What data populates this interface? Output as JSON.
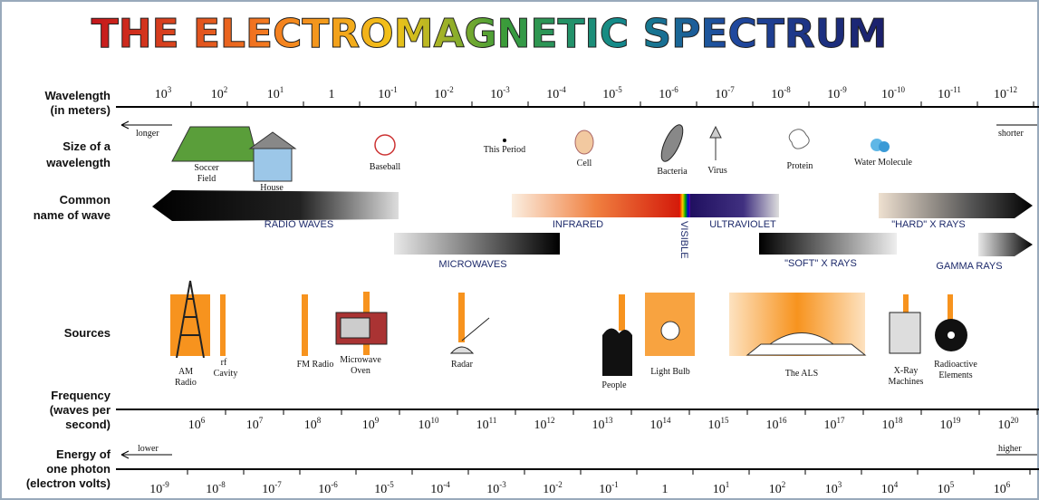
{
  "title": "THE ELECTROMAGNETIC SPECTRUM",
  "row_labels": {
    "wavelength": [
      "Wavelength",
      "(in meters)"
    ],
    "size": [
      "Size of a",
      "wavelength"
    ],
    "name": [
      "Common",
      "name of wave"
    ],
    "sources": [
      "Sources"
    ],
    "frequency": [
      "Frequency",
      "(waves per",
      "second)"
    ],
    "energy": [
      "Energy of",
      "one photon",
      "(electron volts)"
    ]
  },
  "wavelength": {
    "left": "longer",
    "right": "shorter",
    "ticks": [
      {
        "base": "10",
        "exp": "3"
      },
      {
        "base": "10",
        "exp": "2"
      },
      {
        "base": "10",
        "exp": "1"
      },
      {
        "base": "1"
      },
      {
        "base": "10",
        "exp": "-1"
      },
      {
        "base": "10",
        "exp": "-2"
      },
      {
        "base": "10",
        "exp": "-3"
      },
      {
        "base": "10",
        "exp": "-4"
      },
      {
        "base": "10",
        "exp": "-5"
      },
      {
        "base": "10",
        "exp": "-6"
      },
      {
        "base": "10",
        "exp": "-7"
      },
      {
        "base": "10",
        "exp": "-8"
      },
      {
        "base": "10",
        "exp": "-9"
      },
      {
        "base": "10",
        "exp": "-10"
      },
      {
        "base": "10",
        "exp": "-11"
      },
      {
        "base": "10",
        "exp": "-12"
      }
    ]
  },
  "sizes": [
    [
      "Soccer",
      "Field"
    ],
    [
      "House"
    ],
    [
      "Baseball"
    ],
    [
      "This Period"
    ],
    [
      "Cell"
    ],
    [
      "Bacteria"
    ],
    [
      "Virus"
    ],
    [
      "Protein"
    ],
    [
      "Water Molecule"
    ]
  ],
  "waves": [
    "RADIO WAVES",
    "INFRARED",
    "VISIBLE",
    "ULTRAVIOLET",
    "\"HARD\" X RAYS",
    "MICROWAVES",
    "\"SOFT\" X RAYS",
    "GAMMA RAYS"
  ],
  "sources": [
    [
      "AM",
      "Radio"
    ],
    [
      "rf",
      "Cavity"
    ],
    [
      "FM Radio"
    ],
    [
      "Microwave",
      "Oven"
    ],
    [
      "Radar"
    ],
    [
      "People"
    ],
    [
      "Light Bulb"
    ],
    [
      "The ALS"
    ],
    [
      "X-Ray",
      "Machines"
    ],
    [
      "Radioactive",
      "Elements"
    ]
  ],
  "frequency": {
    "ticks": [
      {
        "base": "10",
        "exp": "6"
      },
      {
        "base": "10",
        "exp": "7"
      },
      {
        "base": "10",
        "exp": "8"
      },
      {
        "base": "10",
        "exp": "9"
      },
      {
        "base": "10",
        "exp": "10"
      },
      {
        "base": "10",
        "exp": "11"
      },
      {
        "base": "10",
        "exp": "12"
      },
      {
        "base": "10",
        "exp": "13"
      },
      {
        "base": "10",
        "exp": "14"
      },
      {
        "base": "10",
        "exp": "15"
      },
      {
        "base": "10",
        "exp": "16"
      },
      {
        "base": "10",
        "exp": "17"
      },
      {
        "base": "10",
        "exp": "18"
      },
      {
        "base": "10",
        "exp": "19"
      },
      {
        "base": "10",
        "exp": "20"
      }
    ]
  },
  "energy": {
    "left": "lower",
    "right": "higher",
    "ticks": [
      {
        "base": "10",
        "exp": "-9"
      },
      {
        "base": "10",
        "exp": "-8"
      },
      {
        "base": "10",
        "exp": "-7"
      },
      {
        "base": "10",
        "exp": "-6"
      },
      {
        "base": "10",
        "exp": "-5"
      },
      {
        "base": "10",
        "exp": "-4"
      },
      {
        "base": "10",
        "exp": "-3"
      },
      {
        "base": "10",
        "exp": "-2"
      },
      {
        "base": "10",
        "exp": "-1"
      },
      {
        "base": "1"
      },
      {
        "base": "10",
        "exp": "1"
      },
      {
        "base": "10",
        "exp": "2"
      },
      {
        "base": "10",
        "exp": "3"
      },
      {
        "base": "10",
        "exp": "4"
      },
      {
        "base": "10",
        "exp": "5"
      },
      {
        "base": "10",
        "exp": "6"
      }
    ]
  }
}
